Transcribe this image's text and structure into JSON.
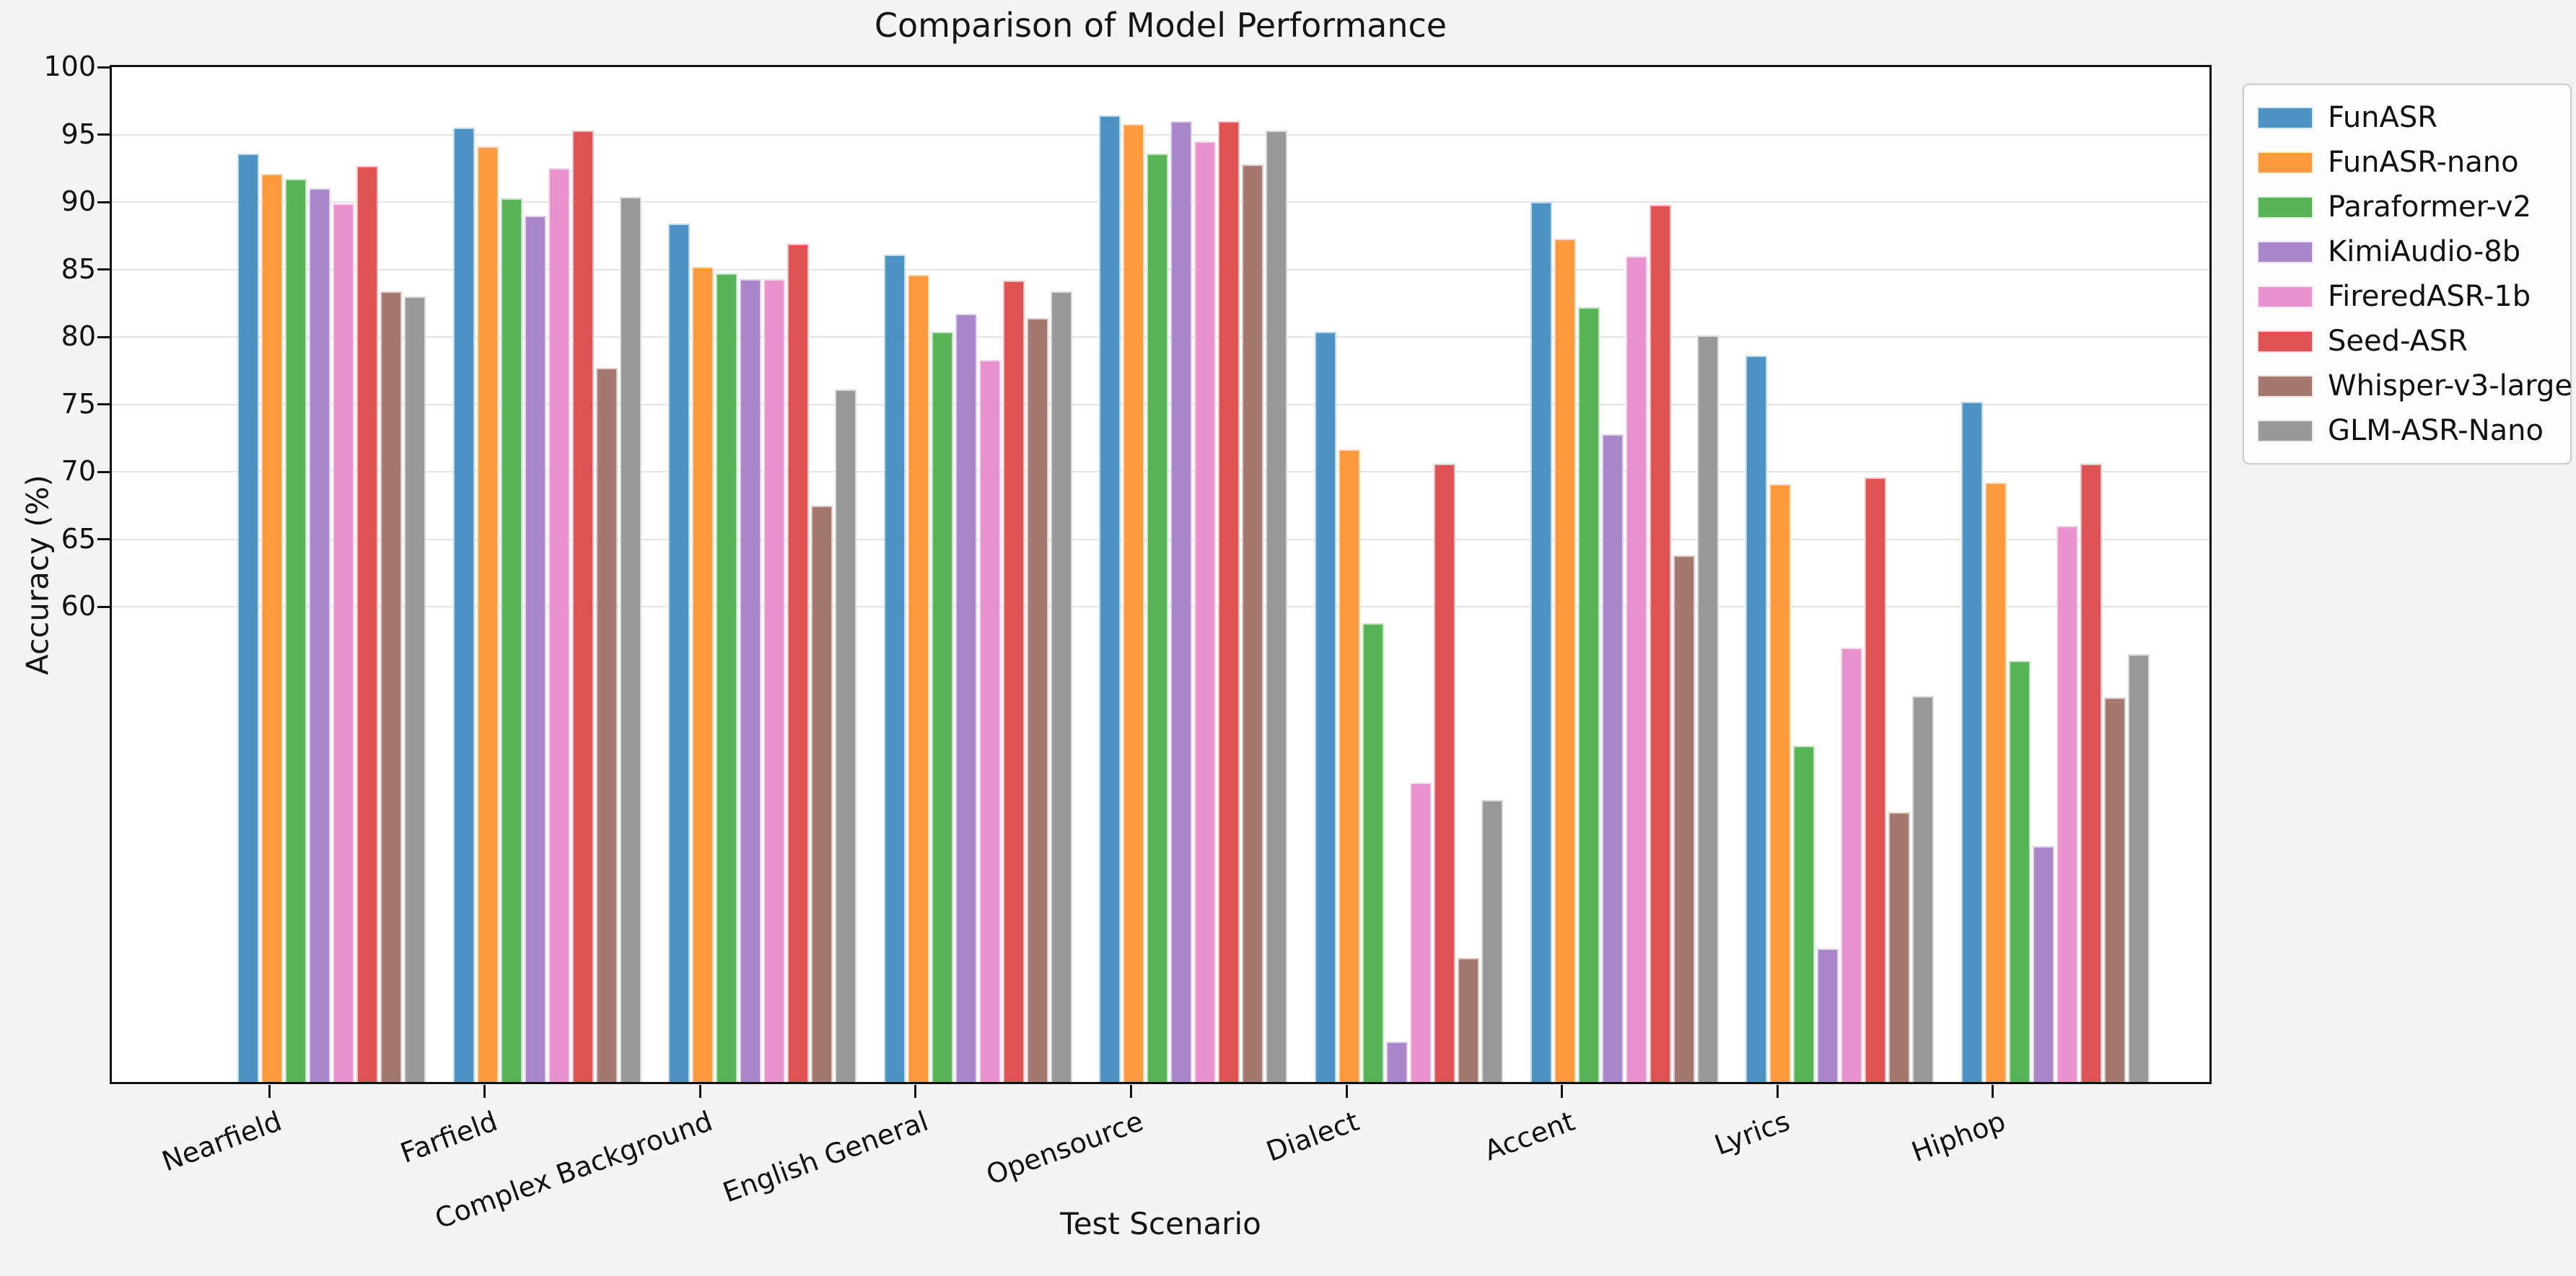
{
  "figure": {
    "title": "Comparison of Model Performance",
    "xlabel": "Test Scenario",
    "ylabel": "Accuracy (%)"
  },
  "chart_data": {
    "type": "bar",
    "title": "Comparison of Model Performance",
    "xlabel": "Test Scenario",
    "ylabel": "Accuracy (%)",
    "grid": true,
    "legend_position": "outside upper right",
    "ylim": [
      24.8,
      100
    ],
    "yticks": [
      60,
      65,
      70,
      75,
      80,
      85,
      90,
      95,
      100
    ],
    "categories": [
      "Nearfield",
      "Farfield",
      "Complex Background",
      "English General",
      "Opensource",
      "Dialect",
      "Accent",
      "Lyrics",
      "Hiphop"
    ],
    "series": [
      {
        "name": "FunASR",
        "color": "#4C92C3",
        "values": [
          93.6,
          95.5,
          88.4,
          86.1,
          96.4,
          80.4,
          90.0,
          78.6,
          75.2
        ]
      },
      {
        "name": "FunASR-nano",
        "color": "#FF993E",
        "values": [
          92.1,
          94.1,
          85.2,
          84.6,
          95.8,
          71.7,
          87.3,
          69.1,
          69.2
        ]
      },
      {
        "name": "Paraformer-v2",
        "color": "#56B356",
        "values": [
          91.7,
          90.3,
          84.7,
          80.4,
          93.6,
          58.8,
          82.2,
          49.7,
          56.0
        ]
      },
      {
        "name": "KimiAudio-8b",
        "color": "#A985CA",
        "values": [
          91.0,
          89.0,
          84.3,
          81.7,
          96.0,
          27.8,
          72.8,
          34.7,
          42.3
        ]
      },
      {
        "name": "FireredASR-1b",
        "color": "#E992CE",
        "values": [
          89.9,
          92.5,
          84.3,
          78.3,
          94.5,
          47.0,
          86.0,
          57.0,
          66.0
        ]
      },
      {
        "name": "Seed-ASR",
        "color": "#DE5253",
        "values": [
          92.7,
          95.3,
          86.9,
          84.2,
          96.0,
          70.6,
          89.8,
          69.6,
          70.6
        ]
      },
      {
        "name": "Whisper-v3-large",
        "color": "#A3786F",
        "values": [
          83.4,
          77.7,
          67.5,
          81.4,
          92.8,
          34.0,
          63.8,
          44.8,
          53.3
        ]
      },
      {
        "name": "GLM-ASR-Nano",
        "color": "#999999",
        "values": [
          83.0,
          90.4,
          76.1,
          83.4,
          95.3,
          45.7,
          80.1,
          53.4,
          56.5
        ]
      }
    ]
  }
}
